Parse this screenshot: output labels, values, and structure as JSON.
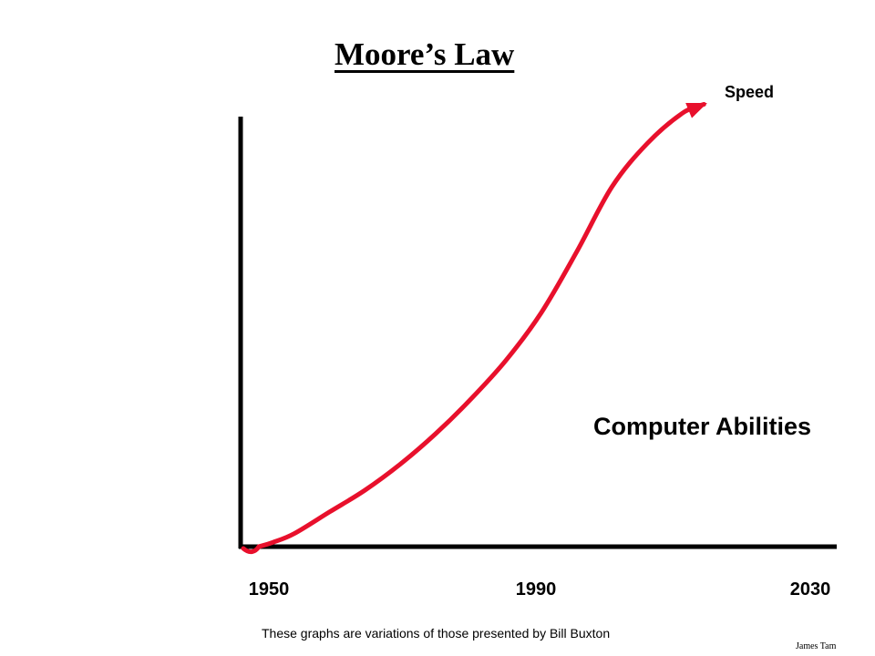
{
  "slide": {
    "title": "Moore’s Law",
    "footer_note": "These graphs are variations of those presented by Bill Buxton",
    "author": "James Tam"
  },
  "chart_data": {
    "type": "line",
    "title": "Moore’s Law",
    "xlabel": "",
    "ylabel": "",
    "x_ticks": [
      "1950",
      "1990",
      "2030"
    ],
    "xlim": [
      1950,
      2030
    ],
    "ylim": [
      0,
      100
    ],
    "grid": false,
    "series": [
      {
        "name": "Speed",
        "color": "#e8102c",
        "x": [
          1950,
          1952,
          1955,
          1960,
          1965,
          1970,
          1975,
          1980,
          1985,
          1990,
          1995,
          2000,
          2005,
          2010,
          2013
        ],
        "y": [
          0,
          1,
          3,
          8,
          13,
          19,
          26,
          34,
          43,
          54,
          68,
          83,
          93,
          100,
          102
        ]
      }
    ],
    "annotations": [
      {
        "text": "Speed",
        "series_end_label": true
      },
      {
        "text": "Computer Abilities"
      }
    ],
    "colors": {
      "axis": "#000000",
      "curve": "#e8102c",
      "text": "#000000"
    }
  }
}
